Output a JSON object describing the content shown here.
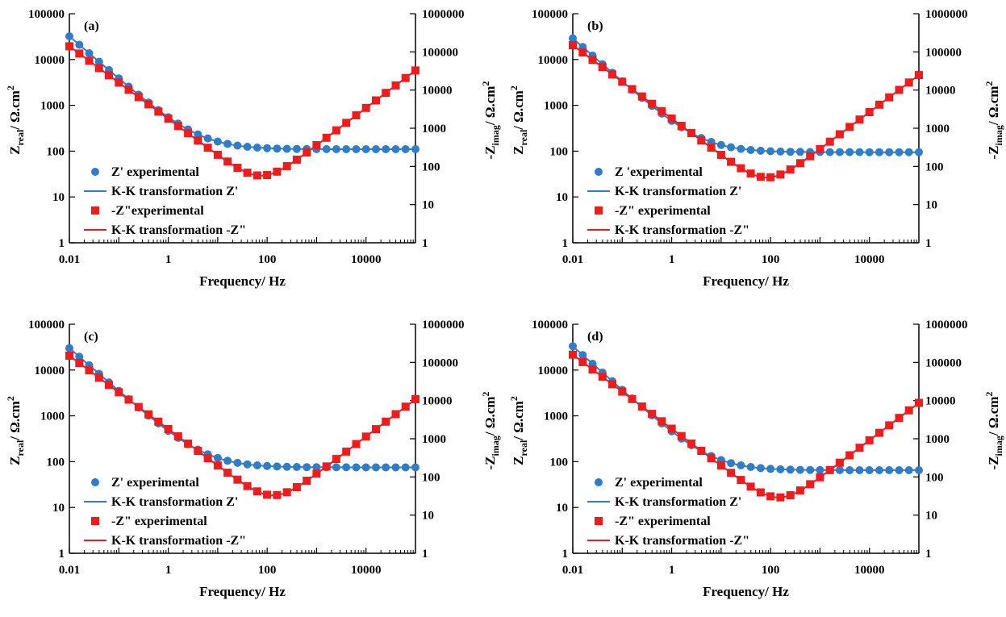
{
  "colors": {
    "blue": "#2f7dc8",
    "red": "#ee1c1c",
    "axis": "#000000"
  },
  "chart_data": [
    {
      "type": "scatter",
      "panel_label": "(a)",
      "xlabel": "Frequency/ Hz",
      "ylabel_left": {
        "main": "Z",
        "sub": "real",
        "rest": "/ Ω.cm",
        "sup": "2"
      },
      "ylabel_right": {
        "main": "-Z",
        "sub": "imag",
        "rest": "/ Ω.cm",
        "sup": "2"
      },
      "x_scale": "log",
      "xlim": [
        0.01,
        100000
      ],
      "x_ticks": [
        0.01,
        1,
        100,
        10000
      ],
      "x_tick_labels": [
        "0.01",
        "1",
        "100",
        "10000"
      ],
      "y_left_scale": "log",
      "ylim_left": [
        1,
        100000
      ],
      "y_left_tick_labels": [
        "1",
        "10",
        "100",
        "1000",
        "10000",
        "100000"
      ],
      "y_right_scale": "log",
      "ylim_right": [
        1,
        1000000
      ],
      "y_right_tick_labels": [
        "1",
        "10",
        "100",
        "1000",
        "10000",
        "100000",
        "1000000"
      ],
      "grid": false,
      "legend_position": "bottom-left",
      "series": [
        {
          "name": "Z' experimental",
          "axis": "left",
          "marker": "circle",
          "color": "#2f7dc8",
          "fit": {
            "name": "K-K transformation Z'"
          },
          "params": {
            "R": 110,
            "A": 32000,
            "k": 0.93
          }
        },
        {
          "name": "-Z\"experimental",
          "axis": "right",
          "marker": "square",
          "color": "#ee1c1c",
          "fit": {
            "name": "K-K transformation -Z\""
          },
          "params": {
            "A": 140000,
            "ka": 0.95,
            "B": 0.0045,
            "kb": 0.98
          }
        }
      ]
    },
    {
      "type": "scatter",
      "panel_label": "(b)",
      "xlabel": "Frequency/ Hz",
      "ylabel_left": {
        "main": "Z",
        "sub": "real",
        "rest": "/ Ω.cm",
        "sup": "2"
      },
      "ylabel_right": {
        "main": "-Z",
        "sub": "imag",
        "rest": "/ Ω.cm",
        "sup": "2"
      },
      "x_scale": "log",
      "xlim": [
        0.01,
        100000
      ],
      "x_ticks": [
        0.01,
        1,
        100,
        10000
      ],
      "x_tick_labels": [
        "0.01",
        "1",
        "100",
        "10000"
      ],
      "y_left_scale": "log",
      "ylim_left": [
        1,
        100000
      ],
      "y_left_tick_labels": [
        "1",
        "10",
        "100",
        "1000",
        "10000",
        "100000"
      ],
      "y_right_scale": "log",
      "ylim_right": [
        1,
        1000000
      ],
      "y_right_tick_labels": [
        "1",
        "10",
        "100",
        "1000",
        "10000",
        "100000",
        "1000000"
      ],
      "grid": false,
      "legend_position": "bottom-left",
      "series": [
        {
          "name": "Z 'experimental",
          "axis": "left",
          "marker": "circle",
          "color": "#2f7dc8",
          "fit": {
            "name": "K-K transformation Z'"
          },
          "params": {
            "R": 95,
            "A": 29000,
            "k": 0.95
          }
        },
        {
          "name": "-Z\" experimental",
          "axis": "right",
          "marker": "square",
          "color": "#ee1c1c",
          "fit": {
            "name": "K-K transformation -Z\""
          },
          "params": {
            "A": 150000,
            "ka": 0.96,
            "B": 0.004,
            "kb": 0.97
          }
        }
      ]
    },
    {
      "type": "scatter",
      "panel_label": "(c)",
      "xlabel": "Frequency/ Hz",
      "ylabel_left": {
        "main": "Z",
        "sub": "real",
        "rest": "/ Ω.cm",
        "sup": "2"
      },
      "ylabel_right": {
        "main": "-Z",
        "sub": "imag",
        "rest": "/ Ω.cm",
        "sup": "2"
      },
      "x_scale": "log",
      "xlim": [
        0.01,
        100000
      ],
      "x_ticks": [
        0.01,
        1,
        100,
        10000
      ],
      "x_tick_labels": [
        "0.01",
        "1",
        "100",
        "10000"
      ],
      "y_left_scale": "log",
      "ylim_left": [
        1,
        100000
      ],
      "y_left_tick_labels": [
        "1",
        "10",
        "100",
        "1000",
        "10000",
        "100000"
      ],
      "y_right_scale": "log",
      "ylim_right": [
        1,
        1000000
      ],
      "y_right_tick_labels": [
        "1",
        "10",
        "100",
        "1000",
        "10000",
        "100000",
        "1000000"
      ],
      "grid": false,
      "legend_position": "bottom-left",
      "series": [
        {
          "name": "Z' experimental",
          "axis": "left",
          "marker": "circle",
          "color": "#2f7dc8",
          "fit": {
            "name": "K-K transformation Z'"
          },
          "params": {
            "R": 75,
            "A": 30000,
            "k": 0.94
          }
        },
        {
          "name": "-Z\" experimental",
          "axis": "right",
          "marker": "square",
          "color": "#ee1c1c",
          "fit": {
            "name": "K-K transformation -Z\""
          },
          "params": {
            "A": 150000,
            "ka": 0.96,
            "B": 0.0015,
            "kb": 0.98
          }
        }
      ]
    },
    {
      "type": "scatter",
      "panel_label": "(d)",
      "xlabel": "Frequency/ Hz",
      "ylabel_left": {
        "main": "Z",
        "sub": "real",
        "rest": "/ Ω.cm",
        "sup": "2"
      },
      "ylabel_right": {
        "main": "-Z",
        "sub": "imag",
        "rest": "/ Ω.cm",
        "sup": "2"
      },
      "x_scale": "log",
      "xlim": [
        0.01,
        100000
      ],
      "x_ticks": [
        0.01,
        1,
        100,
        10000
      ],
      "x_tick_labels": [
        "0.01",
        "1",
        "100",
        "10000"
      ],
      "y_left_scale": "log",
      "ylim_left": [
        1,
        100000
      ],
      "y_left_tick_labels": [
        "1",
        "10",
        "100",
        "1000",
        "10000",
        "100000"
      ],
      "y_right_scale": "log",
      "ylim_right": [
        1,
        1000000
      ],
      "y_right_tick_labels": [
        "1",
        "10",
        "100",
        "1000",
        "10000",
        "100000",
        "1000000"
      ],
      "grid": false,
      "legend_position": "bottom-left",
      "series": [
        {
          "name": "Z' experimental",
          "axis": "left",
          "marker": "circle",
          "color": "#2f7dc8",
          "fit": {
            "name": "K-K transformation Z'"
          },
          "params": {
            "R": 65,
            "A": 33000,
            "k": 0.96
          }
        },
        {
          "name": "-Z\" experimental",
          "axis": "right",
          "marker": "square",
          "color": "#ee1c1c",
          "fit": {
            "name": "K-K transformation -Z\""
          },
          "params": {
            "A": 160000,
            "ka": 0.97,
            "B": 0.0012,
            "kb": 0.98
          }
        }
      ]
    }
  ]
}
